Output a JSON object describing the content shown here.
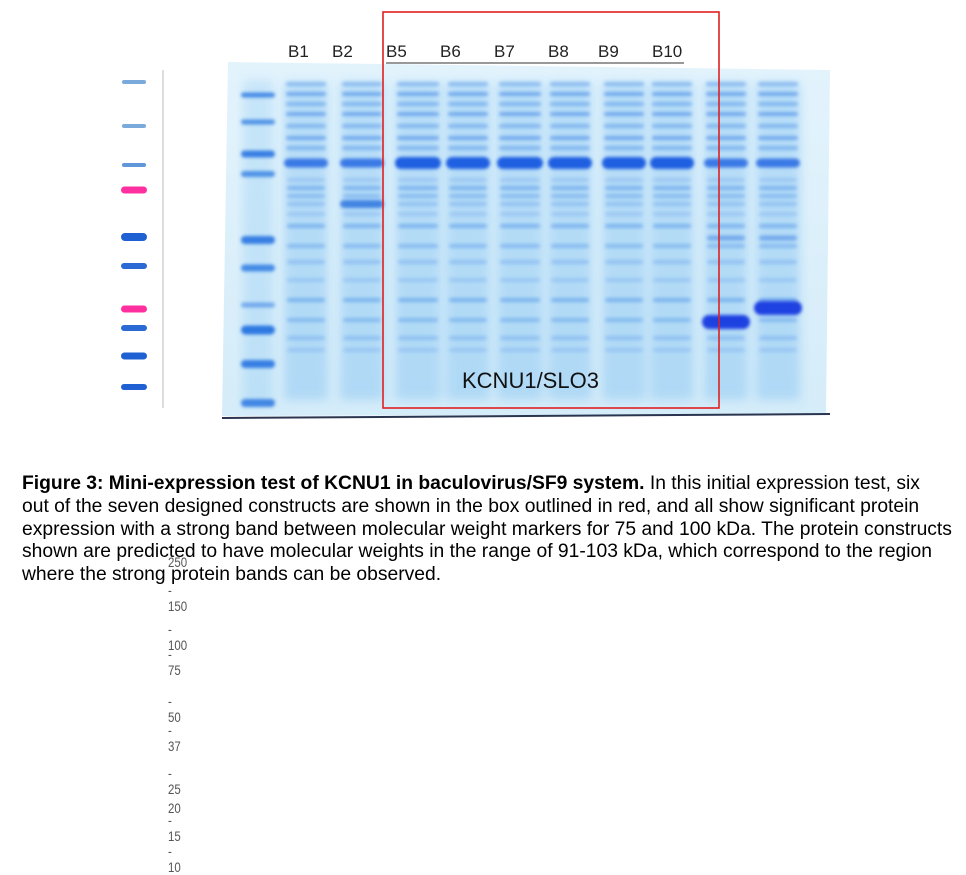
{
  "marker_ladder": [
    "250",
    "150",
    "100",
    "75",
    "50",
    "37",
    "25",
    "20",
    "15",
    "10"
  ],
  "lanes": [
    "B1",
    "B2",
    "B5",
    "B6",
    "B7",
    "B8",
    "B9",
    "B10"
  ],
  "box_label": "KCNU1/SLO3",
  "colors": {
    "highlight_box": "#e02020",
    "stain": "#1e6fe0",
    "marker_pink": "#ff2fa0"
  },
  "caption": {
    "title": "Figure 3: Mini-expression test of KCNU1 in baculovirus/SF9 system.",
    "body": " In this initial expression test, six out of the seven designed constructs are shown in the box outlined in red, and all show significant protein expression with a strong band between molecular weight markers for 75 and 100 kDa. The protein constructs shown are predicted to have molecular weights in the range of 91-103 kDa, which correspond to the region where the strong protein bands can be observed."
  }
}
